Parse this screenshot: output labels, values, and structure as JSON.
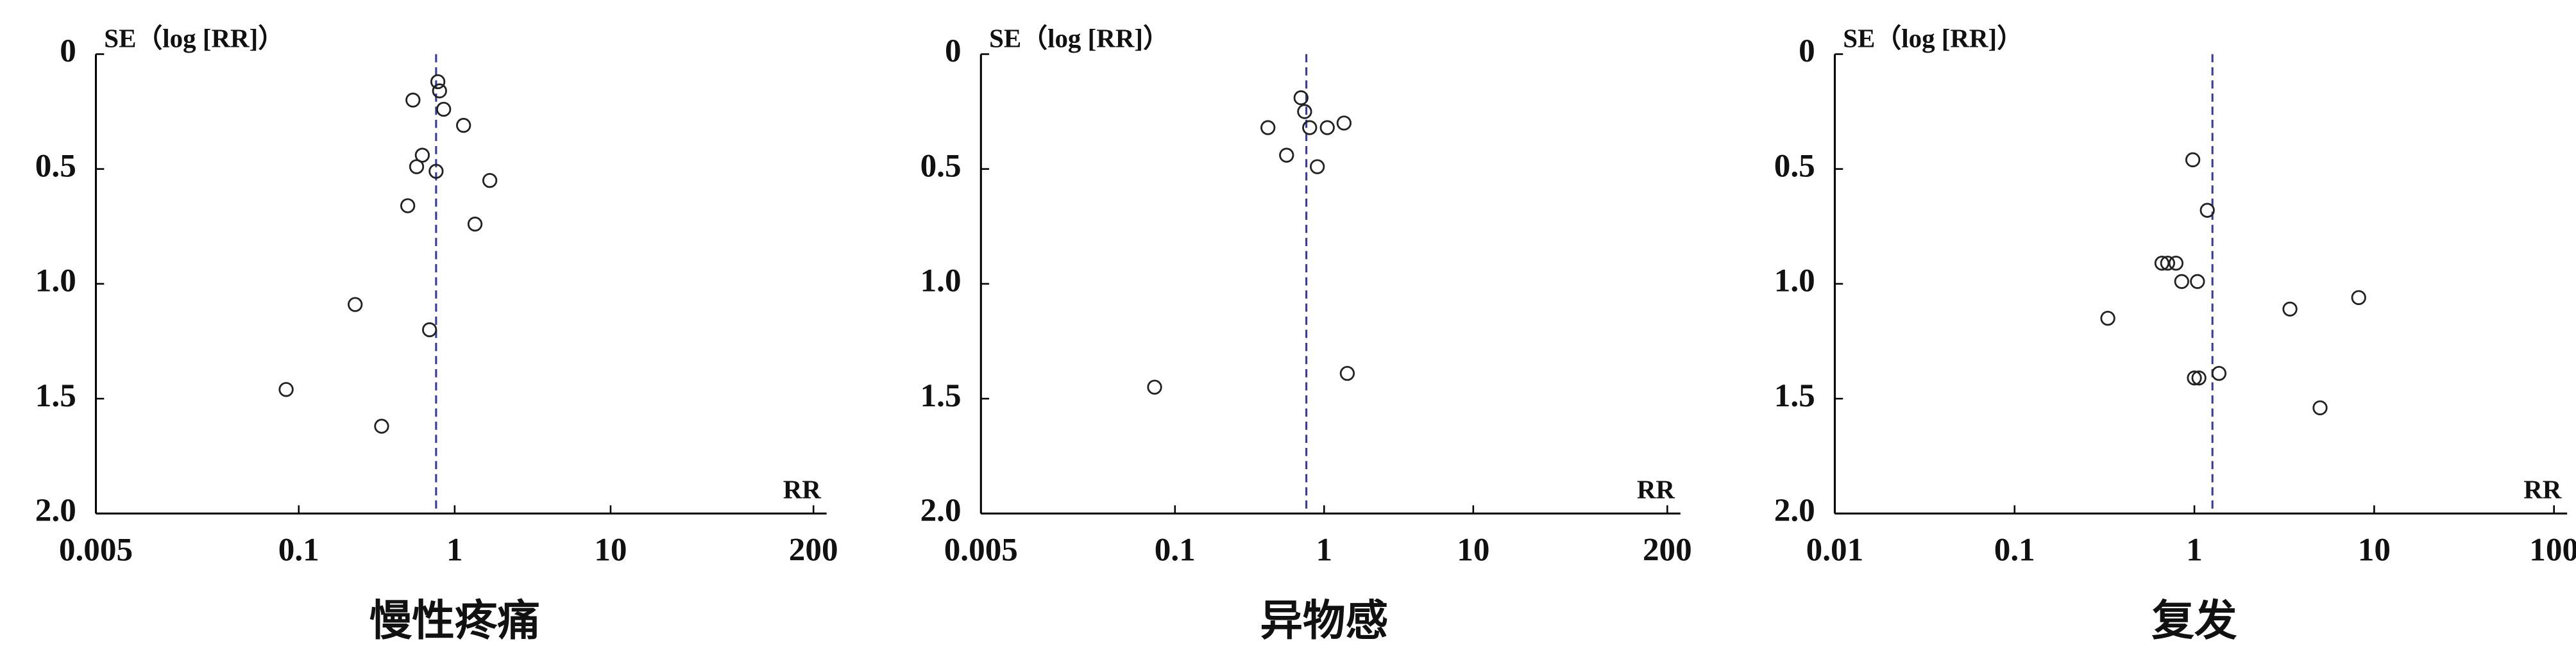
{
  "chart_data": [
    {
      "type": "scatter",
      "title": "慢性疼痛",
      "y_label": "SE（log [RR]）",
      "x_label": "RR",
      "x_scale": "log",
      "y_inverted": true,
      "reference_x": 0.76,
      "xlim": [
        0.005,
        200
      ],
      "xticks": [
        0.005,
        0.1,
        1,
        10,
        200
      ],
      "ylim": [
        0,
        2
      ],
      "yticks": [
        0,
        0.5,
        {
          "value": 1,
          "label": "1.0"
        },
        1.5,
        {
          "value": 2,
          "label": "2.0"
        }
      ],
      "series": [
        {
          "color": "#222222",
          "x": [
            0.78,
            0.8,
            0.54,
            0.85,
            1.14,
            0.62,
            0.57,
            0.76,
            1.68,
            0.5,
            1.35,
            0.23,
            0.69,
            0.083,
            0.34
          ],
          "values": [
            0.12,
            0.16,
            0.2,
            0.24,
            0.31,
            0.44,
            0.49,
            0.51,
            0.55,
            0.66,
            0.74,
            1.09,
            1.2,
            1.46,
            1.62
          ]
        }
      ]
    },
    {
      "type": "scatter",
      "title": "异物感",
      "y_label": "SE（log [RR]）",
      "x_label": "RR",
      "x_scale": "log",
      "y_inverted": true,
      "reference_x": 0.76,
      "xlim": [
        0.005,
        200
      ],
      "xticks": [
        0.005,
        0.1,
        1,
        10,
        200
      ],
      "ylim": [
        0,
        2
      ],
      "yticks": [
        0,
        0.5,
        {
          "value": 1,
          "label": "1.0"
        },
        1.5,
        {
          "value": 2,
          "label": "2.0"
        }
      ],
      "series": [
        {
          "color": "#222222",
          "x": [
            0.7,
            0.74,
            0.42,
            0.8,
            1.05,
            1.36,
            0.56,
            0.9,
            0.073,
            1.43
          ],
          "values": [
            0.19,
            0.25,
            0.32,
            0.32,
            0.32,
            0.3,
            0.44,
            0.49,
            1.45,
            1.39
          ]
        }
      ]
    },
    {
      "type": "scatter",
      "title": "复发",
      "y_label": "SE（log [RR]）",
      "x_label": "RR",
      "x_scale": "log",
      "y_inverted": true,
      "reference_x": 1.26,
      "xlim": [
        0.01,
        100
      ],
      "xticks": [
        0.01,
        0.1,
        1,
        10,
        100
      ],
      "ylim": [
        0,
        2
      ],
      "yticks": [
        0,
        0.5,
        {
          "value": 1,
          "label": "1.0"
        },
        1.5,
        {
          "value": 2,
          "label": "2.0"
        }
      ],
      "series": [
        {
          "color": "#222222",
          "x": [
            0.98,
            1.18,
            0.66,
            0.71,
            0.79,
            0.85,
            1.04,
            0.33,
            3.4,
            8.2,
            1.0,
            1.06,
            1.37,
            5.0
          ],
          "values": [
            0.46,
            0.68,
            0.91,
            0.91,
            0.91,
            0.99,
            0.99,
            1.15,
            1.11,
            1.06,
            1.41,
            1.41,
            1.39,
            1.54
          ]
        }
      ]
    }
  ]
}
